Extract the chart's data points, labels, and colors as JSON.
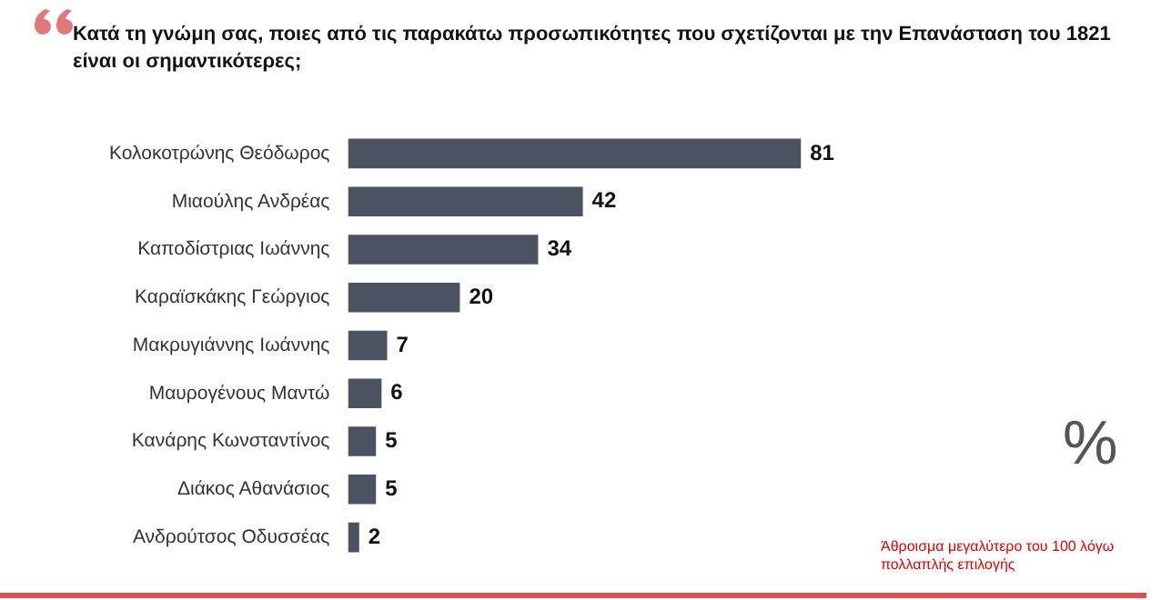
{
  "chart_data": {
    "type": "bar",
    "orientation": "horizontal",
    "title": "Κατά τη γνώμη σας, ποιες από τις παρακάτω προσωπικότητες που σχετίζονται με την Επανάσταση του 1821 είναι οι σημαντικότερες;",
    "categories": [
      "Κολοκοτρώνης Θεόδωρος",
      "Μιαούλης Ανδρέας",
      "Καποδίστριας Ιωάννης",
      "Καραϊσκάκης Γεώργιος",
      "Μακρυγιάννης Ιωάννης",
      "Μαυρογένους Μαντώ",
      "Κανάρης Κωνσταντίνος",
      "Διάκος Αθανάσιος",
      "Ανδρούτσος Οδυσσέας"
    ],
    "values": [
      81,
      42,
      34,
      20,
      7,
      6,
      5,
      5,
      2
    ],
    "color": "#4b5262",
    "data_labels": true,
    "tick_labels": "y",
    "legend": false,
    "annotations": [
      "%",
      "Άθροισμα μεγαλύτερο του 100 λόγω πολλαπλής επιλογής"
    ]
  }
}
